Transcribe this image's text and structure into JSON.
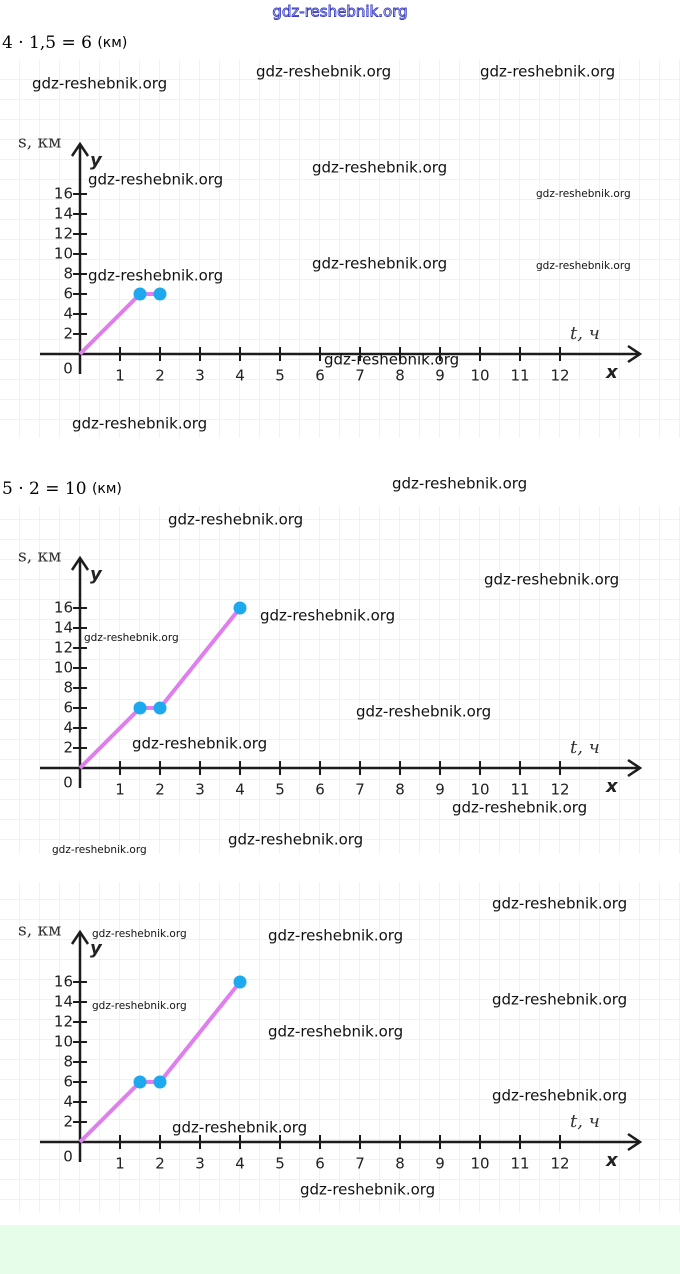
{
  "header": {
    "watermark": "gdz-reshebnik.org"
  },
  "formulas": [
    {
      "expression": "4 · 1,5 = 6",
      "unit": "(км)"
    },
    {
      "expression": "5 · 2 = 10",
      "unit": "(км)"
    }
  ],
  "chart_data": [
    {
      "type": "line",
      "x": [
        0,
        1.5,
        2
      ],
      "series": [
        {
          "values": [
            0,
            6,
            6
          ],
          "color": "#e07ef0"
        }
      ],
      "markers": [
        false,
        true,
        true
      ],
      "marker_color": "#1ea8ee",
      "xlim": [
        -1,
        14
      ],
      "ylim": [
        -2,
        21
      ],
      "xticks": [
        0,
        1,
        2,
        3,
        4,
        5,
        6,
        7,
        8,
        9,
        10,
        11,
        12
      ],
      "yticks": [
        2,
        4,
        6,
        8,
        10,
        12,
        14,
        16
      ],
      "x_label": "t, ч",
      "y_label": "s, км",
      "x_axis_letter": "x",
      "y_axis_letter": "y"
    },
    {
      "type": "line",
      "x": [
        0,
        1.5,
        2,
        4
      ],
      "series": [
        {
          "values": [
            0,
            6,
            6,
            16
          ],
          "color": "#e07ef0"
        }
      ],
      "markers": [
        false,
        true,
        true,
        true
      ],
      "marker_color": "#1ea8ee",
      "xlim": [
        -1,
        14
      ],
      "ylim": [
        -2,
        21
      ],
      "xticks": [
        0,
        1,
        2,
        3,
        4,
        5,
        6,
        7,
        8,
        9,
        10,
        11,
        12
      ],
      "yticks": [
        2,
        4,
        6,
        8,
        10,
        12,
        14,
        16
      ],
      "x_label": "t, ч",
      "y_label": "s, км",
      "x_axis_letter": "x",
      "y_axis_letter": "y"
    },
    {
      "type": "line",
      "x": [
        0,
        1.5,
        2,
        4
      ],
      "series": [
        {
          "values": [
            0,
            6,
            6,
            16
          ],
          "color": "#e07ef0"
        }
      ],
      "markers": [
        false,
        true,
        true,
        true
      ],
      "marker_color": "#1ea8ee",
      "xlim": [
        -1,
        14
      ],
      "ylim": [
        -2,
        21
      ],
      "xticks": [
        0,
        1,
        2,
        3,
        4,
        5,
        6,
        7,
        8,
        9,
        10,
        11,
        12
      ],
      "yticks": [
        2,
        4,
        6,
        8,
        10,
        12,
        14,
        16
      ],
      "x_label": "t, ч",
      "y_label": "s, км",
      "x_axis_letter": "x",
      "y_axis_letter": "y"
    }
  ],
  "watermarks": [
    "gdz-reshebnik.org",
    "gdz-reshebnik.org",
    "gdz-reshebnik.org",
    "gdz-reshebnik.org",
    "gdz-reshebnik.org",
    "gdz-reshebnik.org",
    "gdz-reshebnik.org",
    "gdz-reshebnik.org",
    "gdz-reshebnik.org",
    "gdz-reshebnik.org",
    "gdz-reshebnik.org",
    "gdz-reshebnik.org",
    "gdz-reshebnik.org",
    "gdz-reshebnik.org",
    "gdz-reshebnik.org",
    "gdz-reshebnik.org",
    "gdz-reshebnik.org",
    "gdz-reshebnik.org",
    "gdz-reshebnik.org",
    "gdz-reshebnik.org",
    "gdz-reshebnik.org",
    "gdz-reshebnik.org",
    "gdz-reshebnik.org",
    "gdz-reshebnik.org",
    "gdz-reshebnik.org",
    "gdz-reshebnik.org",
    "gdz-reshebnik.org",
    "gdz-reshebnik.org",
    "gdz-reshebnik.org",
    "gdz-reshebnik.org"
  ]
}
